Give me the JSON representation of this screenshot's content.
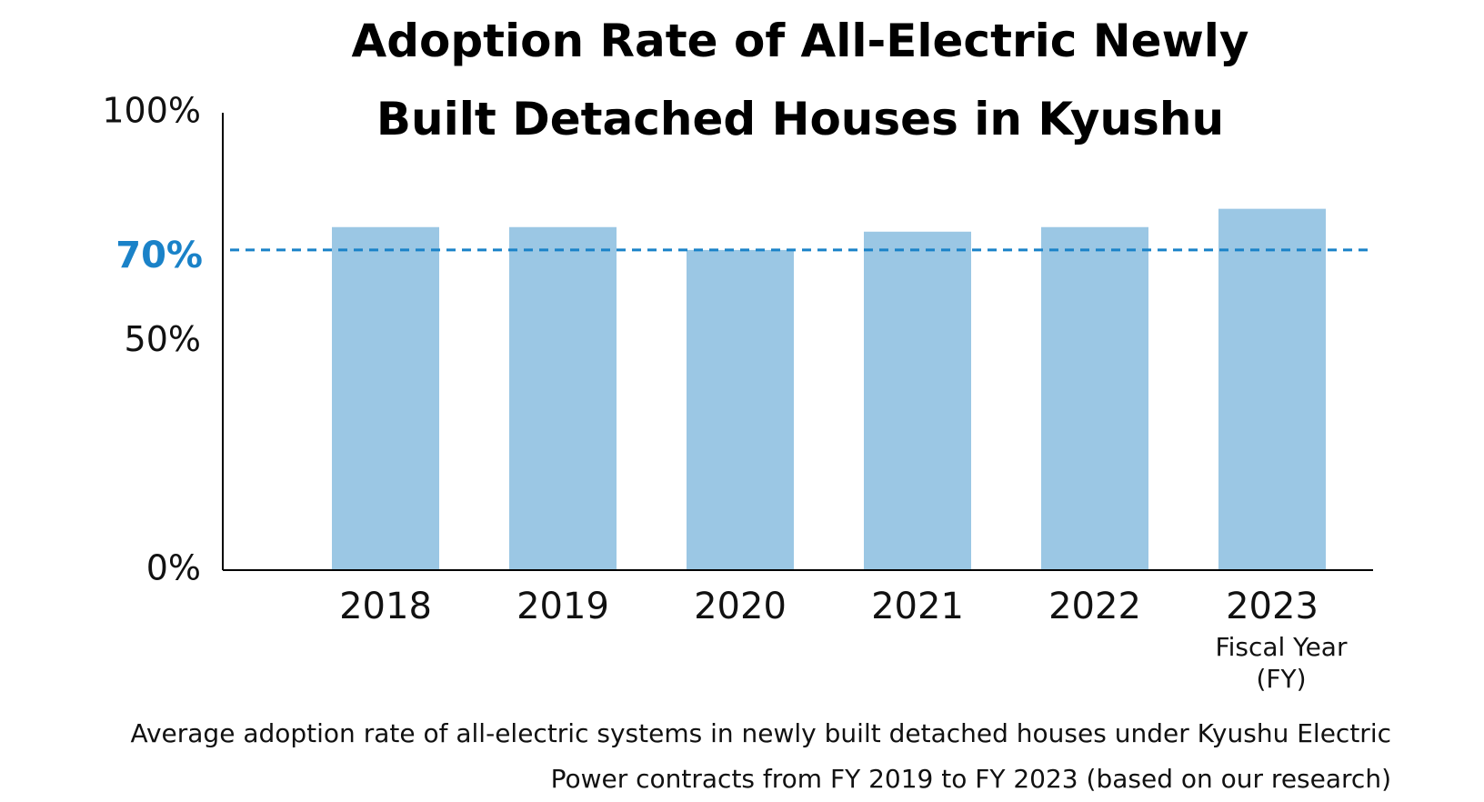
{
  "chart_data": {
    "type": "bar",
    "title": "Adoption Rate of All-Electric Newly Built Detached Houses in Kyushu",
    "categories": [
      "2018",
      "2019",
      "2020",
      "2021",
      "2022",
      "2023"
    ],
    "values": [
      75,
      75,
      70,
      74,
      75,
      79
    ],
    "color": "#9bc7e4",
    "ylim": [
      0,
      100
    ],
    "yticks": [
      {
        "value": 0,
        "label": "0%"
      },
      {
        "value": 50,
        "label": "50%"
      },
      {
        "value": 100,
        "label": "100%"
      }
    ],
    "reference_line": {
      "value": 70,
      "label": "70%",
      "color": "#1a82c8"
    },
    "x_label": [
      "Fiscal Year",
      "(FY)"
    ],
    "note": "Average adoption rate of all-electric systems in newly built detached houses under Kyushu Electric Power contracts from FY 2019 to FY 2023 (based on our research)"
  }
}
